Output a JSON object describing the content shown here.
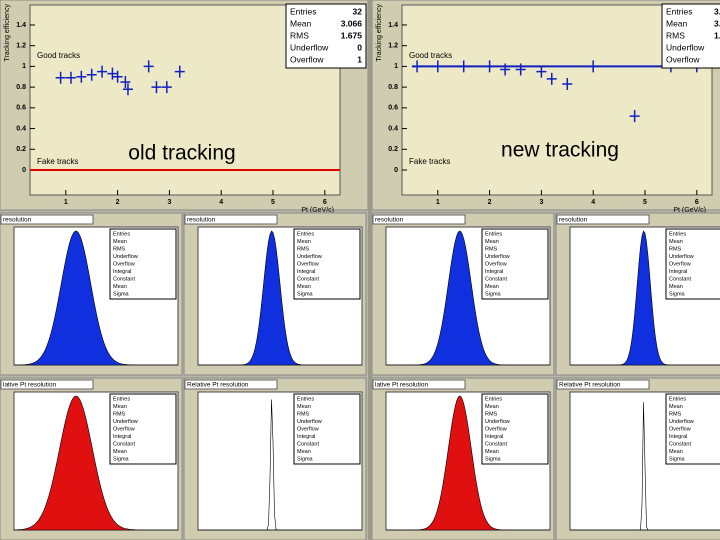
{
  "panels": [
    {
      "label": "old tracking",
      "efficiency": {
        "y_axis_title": "Tracking efficiency",
        "x_axis_title": "Pt (GeV/c)",
        "good_label": "Good tracks",
        "fake_label": "Fake tracks",
        "yticks": [
          "0",
          "0.2",
          "0.4",
          "0.6",
          "0.8",
          "1",
          "1.2",
          "1.4"
        ],
        "xticks": [
          "1",
          "2",
          "3",
          "4",
          "5",
          "6"
        ],
        "stats": [
          [
            "Entries",
            "32"
          ],
          [
            "Mean",
            "3.066"
          ],
          [
            "RMS",
            "1.675"
          ],
          [
            "Underflow",
            "0"
          ],
          [
            "Overflow",
            "1"
          ]
        ],
        "points": [
          [
            0.9,
            0.89
          ],
          [
            1.1,
            0.89
          ],
          [
            1.3,
            0.9
          ],
          [
            1.5,
            0.92
          ],
          [
            1.7,
            0.95
          ],
          [
            1.9,
            0.93
          ],
          [
            2.0,
            0.9
          ],
          [
            2.15,
            0.85
          ],
          [
            2.2,
            0.78
          ],
          [
            2.6,
            1.0
          ],
          [
            2.75,
            0.8
          ],
          [
            2.95,
            0.8
          ],
          [
            3.2,
            0.95
          ]
        ]
      },
      "histograms": [
        {
          "title": "resolution",
          "stats": [
            "Entries",
            "Mean",
            "RMS",
            "Underflow",
            "Overflow",
            "Integral",
            "Constant",
            "Mean",
            "Sigma"
          ]
        },
        {
          "title": "resolution",
          "stats": [
            "Entries",
            "Mean",
            "RMS",
            "Underflow",
            "Overflow",
            "Integral",
            "Constant",
            "Mean",
            "Sigma"
          ]
        },
        {
          "title": "lative Pt resolution",
          "stats": [
            "Entries",
            "Mean",
            "RMS",
            "Underflow",
            "Overflow",
            "Integral",
            "Constant",
            "Mean",
            "Sigma"
          ]
        },
        {
          "title": "Relative Pt resolution",
          "stats": [
            "Entries",
            "Mean",
            "RMS",
            "Underflow",
            "Overflow",
            "Integral",
            "Constant",
            "Mean",
            "Sigma"
          ]
        }
      ]
    },
    {
      "label": "new tracking",
      "efficiency": {
        "y_axis_title": "Tracking efficiency",
        "x_axis_title": "Pt (GeV/c)",
        "good_label": "Good tracks",
        "fake_label": "Fake tracks",
        "yticks": [
          "0",
          "0.2",
          "0.4",
          "0.6",
          "0.8",
          "1",
          "1.2",
          "1.4"
        ],
        "xticks": [
          "1",
          "2",
          "3",
          "4",
          "5",
          "6"
        ],
        "stats": [
          [
            "Entries",
            "3."
          ],
          [
            "Mean",
            "3."
          ],
          [
            "RMS",
            "1."
          ],
          [
            "Underflow",
            ""
          ],
          [
            "Overflow",
            ""
          ]
        ],
        "points": [
          [
            0.6,
            1.0
          ],
          [
            1.0,
            1.0
          ],
          [
            1.5,
            1.0
          ],
          [
            2.0,
            1.0
          ],
          [
            2.3,
            0.97
          ],
          [
            2.6,
            0.97
          ],
          [
            3.0,
            0.95
          ],
          [
            3.2,
            0.88
          ],
          [
            3.5,
            0.83
          ],
          [
            4.0,
            1.0
          ],
          [
            4.8,
            0.52
          ],
          [
            5.5,
            1.0
          ],
          [
            6.0,
            1.0
          ]
        ]
      },
      "histograms": [
        {
          "title": "resolution",
          "stats": [
            "Entries",
            "Mean",
            "RMS",
            "Underflow",
            "Overflow",
            "Integral",
            "Constant",
            "Mean",
            "Sigma"
          ]
        },
        {
          "title": "resolution",
          "stats": [
            "Entries",
            "Mean",
            "RMS",
            "Underflow",
            "Overflow",
            "Integral",
            "Constant",
            "Mean",
            "Sigma"
          ]
        },
        {
          "title": "lative Pt resolution",
          "stats": [
            "Entries",
            "Mean",
            "RMS",
            "Underflow",
            "Overflow",
            "Integral",
            "Constant",
            "Mean",
            "Sigma"
          ]
        },
        {
          "title": "Relative Pt resolution",
          "stats": [
            "Entries",
            "Mean",
            "RMS",
            "Underflow",
            "Overflow",
            "Integral",
            "Constant",
            "Mean",
            "Sigma"
          ]
        }
      ]
    }
  ]
}
